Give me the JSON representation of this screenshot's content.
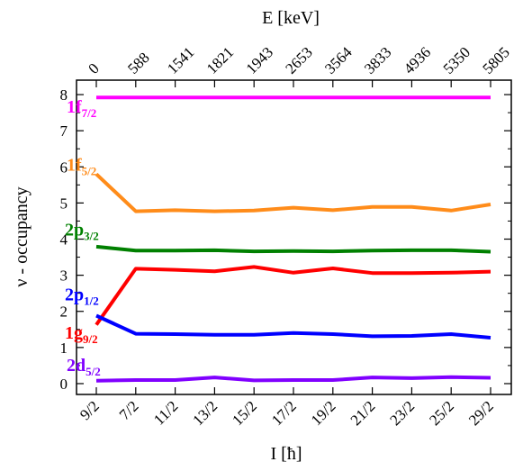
{
  "chart_data": {
    "type": "line",
    "xlabel": "I [ħ]",
    "ylabel": "ν - occupancy",
    "top_axis_label": "E [keV]",
    "categories": [
      "9/2",
      "7/2",
      "11/2",
      "13/2",
      "15/2",
      "17/2",
      "19/2",
      "21/2",
      "23/2",
      "25/2",
      "29/2"
    ],
    "top_ticks": [
      "0",
      "588",
      "1541",
      "1821",
      "1943",
      "2653",
      "3564",
      "3833",
      "4936",
      "5350",
      "5805"
    ],
    "ylim": [
      -0.3,
      8.4
    ],
    "yticks": [
      "0",
      "1",
      "2",
      "3",
      "4",
      "5",
      "6",
      "7",
      "8"
    ],
    "grid": false,
    "series": [
      {
        "name": "1f",
        "sub": "7/2",
        "color": "#ff00ff",
        "values": [
          7.92,
          7.92,
          7.92,
          7.92,
          7.92,
          7.92,
          7.92,
          7.92,
          7.92,
          7.92,
          7.92
        ]
      },
      {
        "name": "1f",
        "sub": "5/2",
        "color": "#ff8c1a",
        "values": [
          5.8,
          4.77,
          4.8,
          4.77,
          4.79,
          4.87,
          4.8,
          4.89,
          4.89,
          4.79,
          4.96
        ]
      },
      {
        "name": "2p",
        "sub": "3/2",
        "color": "#008000",
        "values": [
          3.79,
          3.68,
          3.68,
          3.69,
          3.66,
          3.67,
          3.66,
          3.68,
          3.69,
          3.69,
          3.65
        ]
      },
      {
        "name": "1g",
        "sub": "9/2",
        "color": "#ff0000",
        "values": [
          1.63,
          3.18,
          3.15,
          3.11,
          3.23,
          3.07,
          3.19,
          3.06,
          3.06,
          3.07,
          3.1
        ]
      },
      {
        "name": "2p",
        "sub": "1/2",
        "color": "#0000ff",
        "values": [
          1.88,
          1.38,
          1.37,
          1.35,
          1.35,
          1.4,
          1.37,
          1.31,
          1.32,
          1.37,
          1.27
        ]
      },
      {
        "name": "2d",
        "sub": "5/2",
        "color": "#8000ff",
        "values": [
          0.08,
          0.1,
          0.1,
          0.17,
          0.09,
          0.1,
          0.1,
          0.17,
          0.15,
          0.18,
          0.16
        ]
      }
    ]
  }
}
